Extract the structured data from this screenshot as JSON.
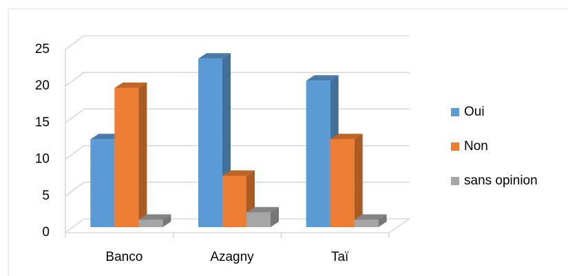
{
  "chart_data": {
    "type": "bar",
    "categories": [
      "Banco",
      "Azagny",
      "Taï"
    ],
    "series": [
      {
        "name": "Oui",
        "color": "#5b9bd5",
        "values": [
          12,
          23,
          20
        ]
      },
      {
        "name": "Non",
        "color": "#ed7d31",
        "values": [
          19,
          7,
          12
        ]
      },
      {
        "name": "sans opinion",
        "color": "#a5a5a5",
        "values": [
          1,
          2,
          1
        ]
      }
    ],
    "ylim": [
      0,
      25
    ],
    "yticks": [
      0,
      5,
      10,
      15,
      20,
      25
    ],
    "grid": true,
    "legend": "right"
  }
}
